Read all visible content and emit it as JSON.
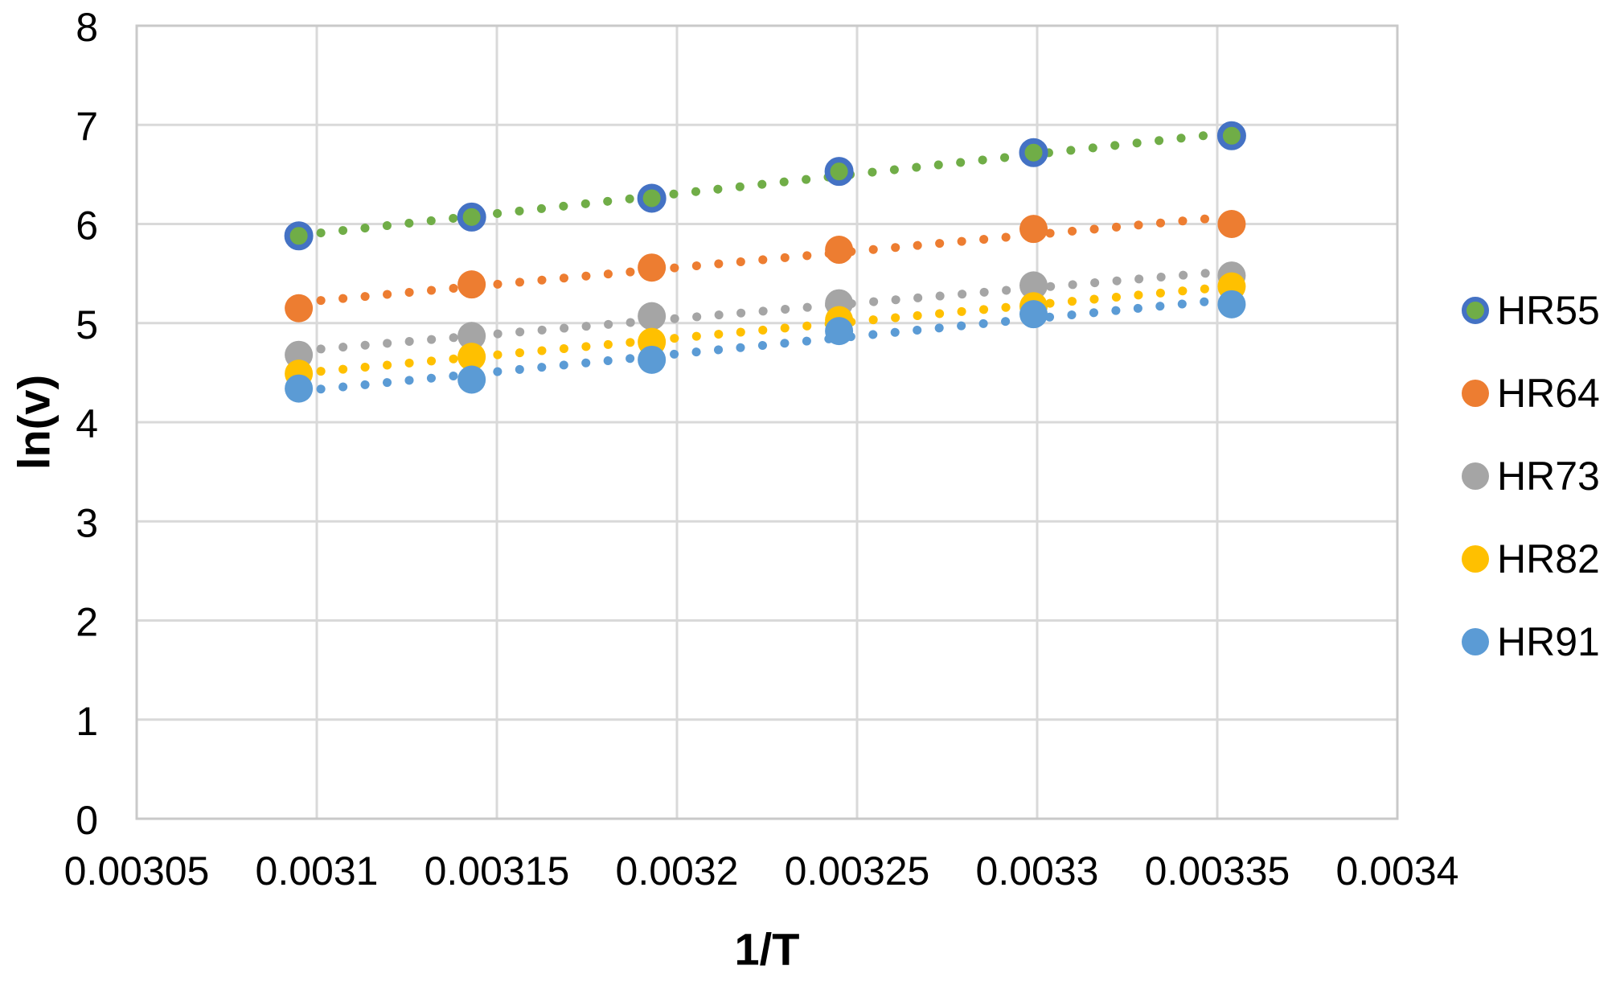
{
  "chart_data": {
    "type": "scatter",
    "title": "",
    "xlabel": "1/T",
    "ylabel": "ln(v)",
    "xlim": [
      0.00305,
      0.0034
    ],
    "ylim": [
      0,
      8
    ],
    "x_ticks": [
      "0.00305",
      "0.0031",
      "0.00315",
      "0.0032",
      "0.00325",
      "0.0033",
      "0.00335",
      "0.0034"
    ],
    "y_ticks": [
      "0",
      "1",
      "2",
      "3",
      "4",
      "5",
      "6",
      "7",
      "8"
    ],
    "grid": true,
    "grid_color": "#D9D9D9",
    "frame_color": "#C9C9C9",
    "legend_position": "right",
    "x": [
      0.003095,
      0.003143,
      0.003193,
      0.003245,
      0.003299,
      0.003354
    ],
    "series": [
      {
        "name": "HR55",
        "color": "#70AD47",
        "marker_outline": "#4472C4",
        "trendline": "dotted",
        "values": [
          5.88,
          6.07,
          6.26,
          6.53,
          6.72,
          6.89
        ]
      },
      {
        "name": "HR64",
        "color": "#ED7D31",
        "marker_outline": null,
        "trendline": "dotted",
        "values": [
          5.15,
          5.39,
          5.56,
          5.74,
          5.95,
          6.0
        ]
      },
      {
        "name": "HR73",
        "color": "#A5A5A5",
        "marker_outline": null,
        "trendline": "dotted",
        "values": [
          4.68,
          4.87,
          5.07,
          5.2,
          5.38,
          5.48
        ]
      },
      {
        "name": "HR82",
        "color": "#FFC000",
        "marker_outline": null,
        "trendline": "dotted",
        "values": [
          4.49,
          4.66,
          4.81,
          5.03,
          5.17,
          5.37
        ]
      },
      {
        "name": "HR91",
        "color": "#5B9BD5",
        "marker_outline": null,
        "trendline": "dotted",
        "values": [
          4.34,
          4.43,
          4.63,
          4.92,
          5.09,
          5.19
        ]
      }
    ]
  }
}
